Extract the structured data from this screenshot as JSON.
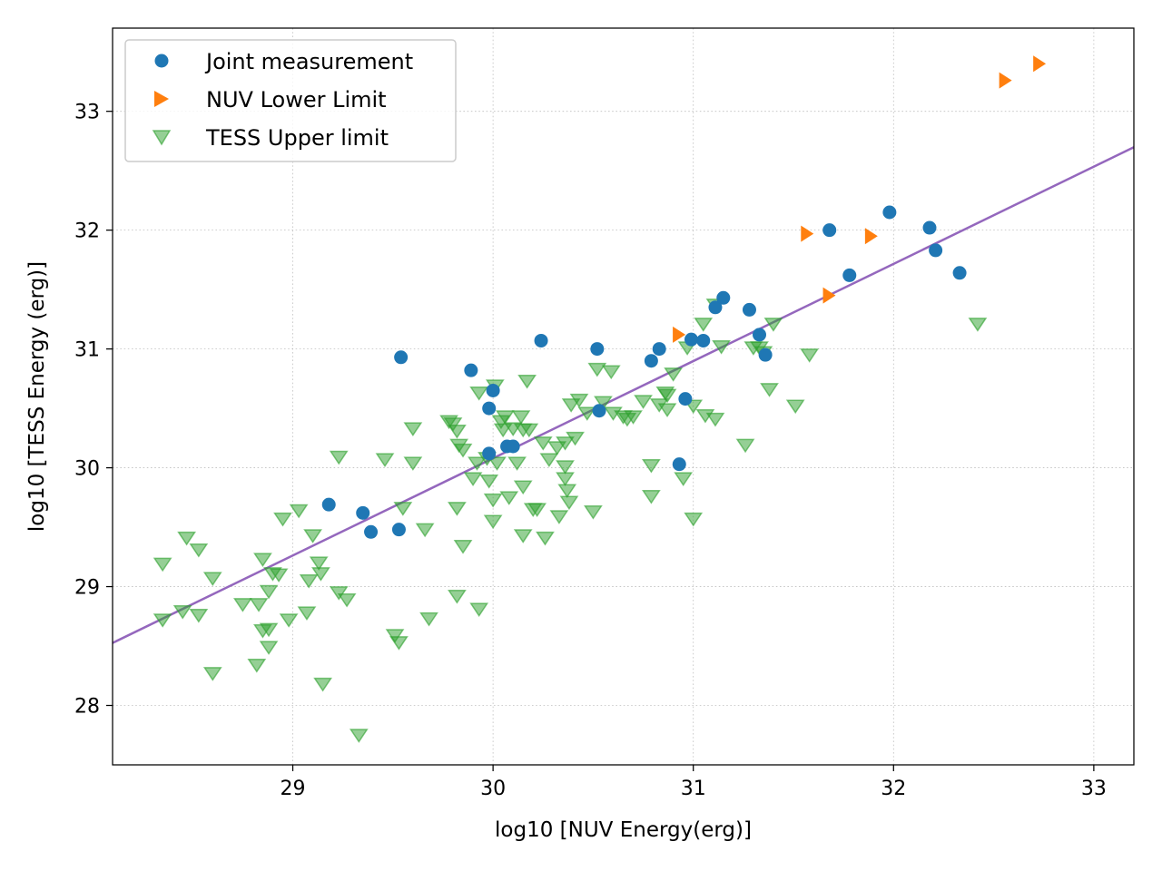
{
  "chart_data": {
    "type": "scatter",
    "title": "",
    "xlabel": "log10 [NUV Energy(erg)]",
    "ylabel": "log10 [TESS Energy (erg)]",
    "xlim": [
      28.1,
      33.2
    ],
    "ylim": [
      27.5,
      33.7
    ],
    "xticks": [
      29,
      30,
      31,
      32,
      33
    ],
    "yticks": [
      28,
      29,
      30,
      31,
      32,
      33
    ],
    "grid": true,
    "legend_position": "top-left",
    "colors": {
      "joint": "#1f77b4",
      "nuv_limit": "#ff7f0e",
      "tess_limit": "#2ca02c",
      "fit": "#9467bd"
    },
    "fit_line": {
      "slope": 0.818,
      "intercept": 5.54
    },
    "series": [
      {
        "name": "Joint measurement",
        "marker": "circle",
        "points": [
          [
            29.18,
            29.69
          ],
          [
            29.35,
            29.62
          ],
          [
            29.39,
            29.46
          ],
          [
            29.53,
            29.48
          ],
          [
            29.54,
            30.93
          ],
          [
            29.89,
            30.82
          ],
          [
            29.98,
            30.5
          ],
          [
            29.98,
            30.12
          ],
          [
            30.0,
            30.65
          ],
          [
            30.07,
            30.18
          ],
          [
            30.1,
            30.18
          ],
          [
            30.24,
            31.07
          ],
          [
            30.52,
            31.0
          ],
          [
            30.53,
            30.48
          ],
          [
            30.79,
            30.9
          ],
          [
            30.83,
            31.0
          ],
          [
            30.93,
            30.03
          ],
          [
            30.96,
            30.58
          ],
          [
            30.99,
            31.08
          ],
          [
            31.05,
            31.07
          ],
          [
            31.11,
            31.35
          ],
          [
            31.15,
            31.43
          ],
          [
            31.28,
            31.33
          ],
          [
            31.33,
            31.12
          ],
          [
            31.36,
            30.95
          ],
          [
            31.68,
            32.0
          ],
          [
            31.78,
            31.62
          ],
          [
            31.98,
            32.15
          ],
          [
            32.18,
            32.02
          ],
          [
            32.21,
            31.83
          ],
          [
            32.33,
            31.64
          ]
        ]
      },
      {
        "name": "NUV Lower Limit",
        "marker": "triangle-right",
        "points": [
          [
            30.92,
            31.12
          ],
          [
            31.56,
            31.97
          ],
          [
            31.67,
            31.45
          ],
          [
            31.88,
            31.95
          ],
          [
            32.55,
            33.26
          ],
          [
            32.72,
            33.4
          ]
        ]
      },
      {
        "name": "TESS Upper limit",
        "marker": "triangle-down",
        "points": [
          [
            28.35,
            29.2
          ],
          [
            28.35,
            28.73
          ],
          [
            28.45,
            28.8
          ],
          [
            28.47,
            29.42
          ],
          [
            28.53,
            29.32
          ],
          [
            28.53,
            28.77
          ],
          [
            28.6,
            28.28
          ],
          [
            28.6,
            29.08
          ],
          [
            28.75,
            28.86
          ],
          [
            28.82,
            28.35
          ],
          [
            28.83,
            28.86
          ],
          [
            28.85,
            29.24
          ],
          [
            28.85,
            28.64
          ],
          [
            28.88,
            28.65
          ],
          [
            28.88,
            28.5
          ],
          [
            28.88,
            28.97
          ],
          [
            28.9,
            29.12
          ],
          [
            28.93,
            29.11
          ],
          [
            28.95,
            29.58
          ],
          [
            28.98,
            28.73
          ],
          [
            29.03,
            29.65
          ],
          [
            29.07,
            28.79
          ],
          [
            29.08,
            29.06
          ],
          [
            29.1,
            29.44
          ],
          [
            29.13,
            29.21
          ],
          [
            29.14,
            29.12
          ],
          [
            29.15,
            28.19
          ],
          [
            29.23,
            30.1
          ],
          [
            29.23,
            28.96
          ],
          [
            29.27,
            28.9
          ],
          [
            29.33,
            27.76
          ],
          [
            29.46,
            30.08
          ],
          [
            29.51,
            28.6
          ],
          [
            29.53,
            28.54
          ],
          [
            29.55,
            29.67
          ],
          [
            29.6,
            30.34
          ],
          [
            29.6,
            30.05
          ],
          [
            29.66,
            29.49
          ],
          [
            29.68,
            28.74
          ],
          [
            29.78,
            30.4
          ],
          [
            29.8,
            30.38
          ],
          [
            29.82,
            30.32
          ],
          [
            29.83,
            30.2
          ],
          [
            29.82,
            29.67
          ],
          [
            29.82,
            28.93
          ],
          [
            29.85,
            30.16
          ],
          [
            29.85,
            29.35
          ],
          [
            29.9,
            29.92
          ],
          [
            29.92,
            30.05
          ],
          [
            29.93,
            30.64
          ],
          [
            29.93,
            28.82
          ],
          [
            29.97,
            30.09
          ],
          [
            29.98,
            29.9
          ],
          [
            30.0,
            29.74
          ],
          [
            30.0,
            29.56
          ],
          [
            30.01,
            30.7
          ],
          [
            30.02,
            30.05
          ],
          [
            30.04,
            30.4
          ],
          [
            30.05,
            30.33
          ],
          [
            30.06,
            30.44
          ],
          [
            30.08,
            29.76
          ],
          [
            30.1,
            30.34
          ],
          [
            30.12,
            30.05
          ],
          [
            30.14,
            30.44
          ],
          [
            30.15,
            30.33
          ],
          [
            30.15,
            29.85
          ],
          [
            30.15,
            29.44
          ],
          [
            30.17,
            30.74
          ],
          [
            30.18,
            30.33
          ],
          [
            30.2,
            29.66
          ],
          [
            30.22,
            29.66
          ],
          [
            30.25,
            30.22
          ],
          [
            30.26,
            29.42
          ],
          [
            30.28,
            30.08
          ],
          [
            30.32,
            30.18
          ],
          [
            30.33,
            29.6
          ],
          [
            30.36,
            30.22
          ],
          [
            30.36,
            30.02
          ],
          [
            30.36,
            29.92
          ],
          [
            30.37,
            29.82
          ],
          [
            30.38,
            29.72
          ],
          [
            30.39,
            30.54
          ],
          [
            30.41,
            30.26
          ],
          [
            30.43,
            30.58
          ],
          [
            30.47,
            30.47
          ],
          [
            30.5,
            29.64
          ],
          [
            30.52,
            30.84
          ],
          [
            30.55,
            30.56
          ],
          [
            30.59,
            30.82
          ],
          [
            30.6,
            30.47
          ],
          [
            30.65,
            30.44
          ],
          [
            30.67,
            30.42
          ],
          [
            30.7,
            30.44
          ],
          [
            30.75,
            30.57
          ],
          [
            30.79,
            30.03
          ],
          [
            30.79,
            29.77
          ],
          [
            30.83,
            30.54
          ],
          [
            30.86,
            30.64
          ],
          [
            30.87,
            30.5
          ],
          [
            30.87,
            30.62
          ],
          [
            30.9,
            30.8
          ],
          [
            30.95,
            29.92
          ],
          [
            30.97,
            31.02
          ],
          [
            31.0,
            30.53
          ],
          [
            31.0,
            29.58
          ],
          [
            31.05,
            31.22
          ],
          [
            31.06,
            30.45
          ],
          [
            31.11,
            31.38
          ],
          [
            31.11,
            30.42
          ],
          [
            31.14,
            31.03
          ],
          [
            31.26,
            30.2
          ],
          [
            31.3,
            31.02
          ],
          [
            31.33,
            31.02
          ],
          [
            31.35,
            30.98
          ],
          [
            31.38,
            30.67
          ],
          [
            31.4,
            31.22
          ],
          [
            31.51,
            30.53
          ],
          [
            31.58,
            30.96
          ],
          [
            32.42,
            31.22
          ]
        ]
      }
    ]
  }
}
